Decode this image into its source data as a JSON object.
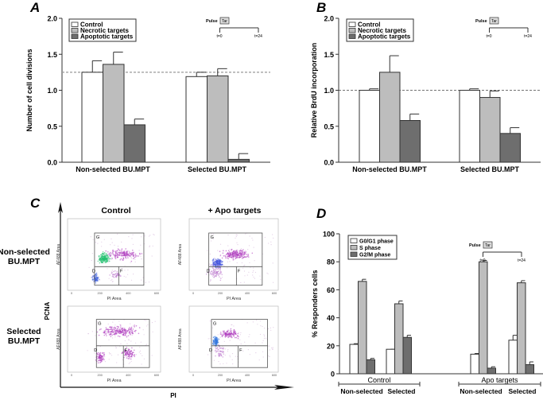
{
  "panel_labels": [
    "A",
    "B",
    "C",
    "D"
  ],
  "colors": {
    "control": "#ffffff",
    "necrotic": "#bdbdbd",
    "apoptotic": "#6e6e6e",
    "axis": "#333333"
  },
  "chart_data": [
    {
      "id": "A",
      "type": "bar",
      "ylabel": "Number of cell divisions",
      "ylim": [
        0,
        2.0
      ],
      "yticks": [
        "0.0",
        "0.5",
        "1.0",
        "1.5",
        "2.0"
      ],
      "categories": [
        "Non-selected BU.MPT",
        "Selected BU.MPT"
      ],
      "reference_line": 1.25,
      "series": [
        {
          "name": "Control",
          "values": [
            1.25,
            1.19
          ],
          "errors": [
            0.16,
            0.06
          ]
        },
        {
          "name": "Necrotic targets",
          "values": [
            1.36,
            1.2
          ],
          "errors": [
            0.17,
            0.1
          ]
        },
        {
          "name": "Apoptotic targets",
          "values": [
            0.52,
            0.04
          ],
          "errors": [
            0.08,
            0.08
          ]
        }
      ],
      "inset": {
        "pulse": "Pulse",
        "box": "Tar",
        "t0": "t=0",
        "t1": "t=24"
      }
    },
    {
      "id": "B",
      "type": "bar",
      "ylabel": "Relative BrdU incorporation",
      "ylim": [
        0,
        2.0
      ],
      "yticks": [
        "0.0",
        "0.5",
        "1.0",
        "1.5",
        "2.0"
      ],
      "categories": [
        "Non-selected BU.MPT",
        "Selected BU.MPT"
      ],
      "reference_line": 1.0,
      "series": [
        {
          "name": "Control",
          "values": [
            1.0,
            1.0
          ],
          "errors": [
            0.02,
            0.02
          ]
        },
        {
          "name": "Necrotic targets",
          "values": [
            1.25,
            0.9
          ],
          "errors": [
            0.23,
            0.09
          ]
        },
        {
          "name": "Apoptotic targets",
          "values": [
            0.58,
            0.4
          ],
          "errors": [
            0.09,
            0.08
          ]
        }
      ],
      "inset": {
        "pulse": "Pulse",
        "box": "Tar",
        "t0": "t=0",
        "t1": "t=24"
      }
    },
    {
      "id": "D",
      "type": "bar",
      "ylabel": "% Responders cells",
      "ylim": [
        0,
        100
      ],
      "yticks": [
        "0",
        "20",
        "40",
        "60",
        "80",
        "100"
      ],
      "categories": [
        "Non-selected",
        "Selected",
        "Non-selected",
        "Selected"
      ],
      "groups": [
        "Control",
        "Apo targets"
      ],
      "series": [
        {
          "name": "G0/G1 phase",
          "values": [
            21,
            17.5,
            14,
            24
          ],
          "errors": [
            0.5,
            0,
            0.5,
            3.5
          ]
        },
        {
          "name": "S phase",
          "values": [
            66,
            50,
            80,
            65
          ],
          "errors": [
            1.5,
            2,
            1,
            1.5
          ]
        },
        {
          "name": "G2/M phase",
          "values": [
            10,
            26,
            4,
            6.5
          ],
          "errors": [
            1,
            1.5,
            1,
            2
          ]
        }
      ],
      "inset": {
        "pulse": "Pulse",
        "box": "Tar",
        "t0": "t=0",
        "t1": "t=24"
      }
    }
  ],
  "flow": {
    "columns": [
      "Control",
      "+ Apo targets"
    ],
    "rows": [
      "Non-selected\nBU.MPT",
      "Selected\nBU.MPT"
    ],
    "y_axis": "PCNA",
    "x_axis": "PI",
    "plot_xlabel": "PI Area",
    "plot_ylabel": "AF488 Area",
    "xticks": [
      "0",
      "200",
      "400",
      "600"
    ],
    "gates": [
      "G",
      "D",
      "F"
    ]
  }
}
